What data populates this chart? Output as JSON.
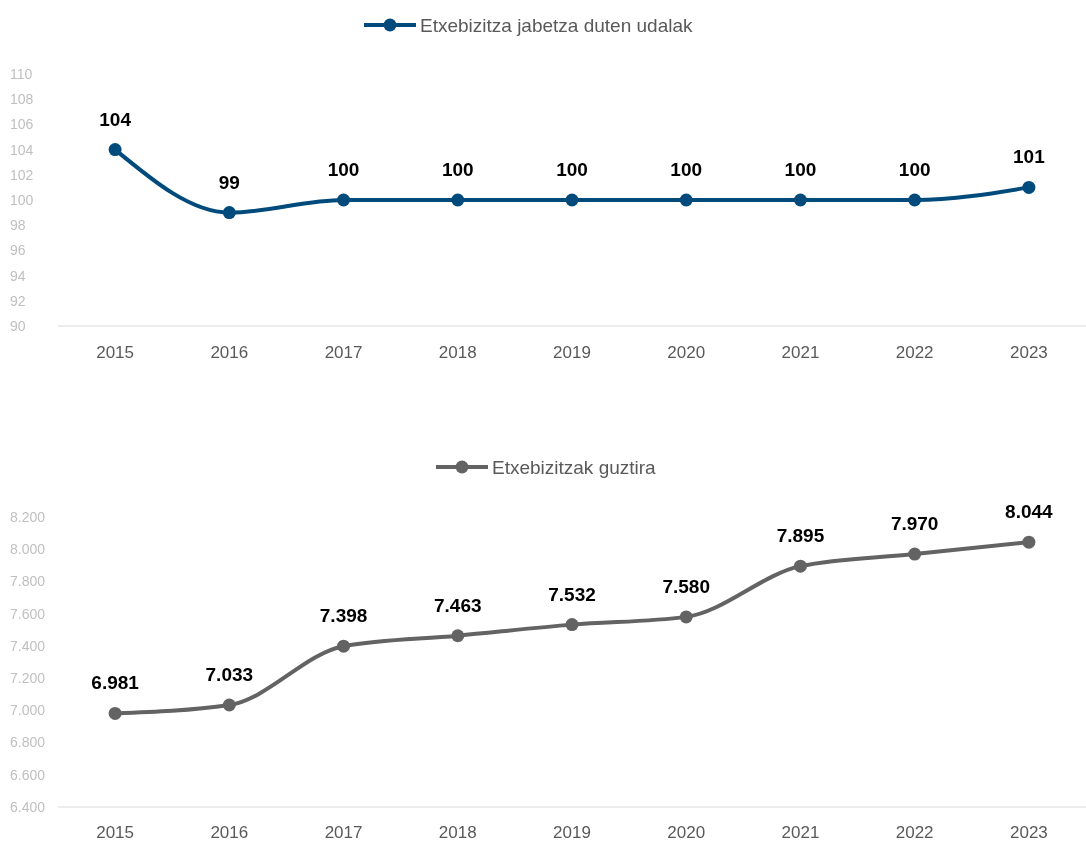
{
  "chart_data": [
    {
      "type": "line",
      "categories": [
        "2015",
        "2016",
        "2017",
        "2018",
        "2019",
        "2020",
        "2021",
        "2022",
        "2023"
      ],
      "series": [
        {
          "name": "Etxebizitza jabetza duten udalak",
          "color": "#004a7c",
          "values": [
            104,
            99,
            100,
            100,
            100,
            100,
            100,
            100,
            101
          ]
        }
      ],
      "ylim": [
        90,
        110
      ],
      "yticks": [
        90,
        92,
        94,
        96,
        98,
        100,
        102,
        104,
        106,
        108,
        110
      ],
      "data_labels": true,
      "legend": "top",
      "marker": "circle",
      "grid": false
    },
    {
      "type": "line",
      "categories": [
        "2015",
        "2016",
        "2017",
        "2018",
        "2019",
        "2020",
        "2021",
        "2022",
        "2023"
      ],
      "series": [
        {
          "name": "Etxebizitzak guztira",
          "color": "#636363",
          "values": [
            6981,
            7033,
            7398,
            7463,
            7532,
            7580,
            7895,
            7970,
            8044
          ],
          "value_labels": [
            "6.981",
            "7.033",
            "7.398",
            "7.463",
            "7.532",
            "7.580",
            "7.895",
            "7.970",
            "8.044"
          ]
        }
      ],
      "ylim": [
        6400,
        8200
      ],
      "yticks": [
        {
          "value": 6400,
          "label": "6.400"
        },
        {
          "value": 6600,
          "label": "6.600"
        },
        {
          "value": 6800,
          "label": "6.800"
        },
        {
          "value": 7000,
          "label": "7.000"
        },
        {
          "value": 7200,
          "label": "7.200"
        },
        {
          "value": 7400,
          "label": "7.400"
        },
        {
          "value": 7600,
          "label": "7.600"
        },
        {
          "value": 7800,
          "label": "7.800"
        },
        {
          "value": 8000,
          "label": "8.000"
        },
        {
          "value": 8200,
          "label": "8.200"
        }
      ],
      "legend": "top",
      "marker": "circle",
      "grid": false
    }
  ]
}
